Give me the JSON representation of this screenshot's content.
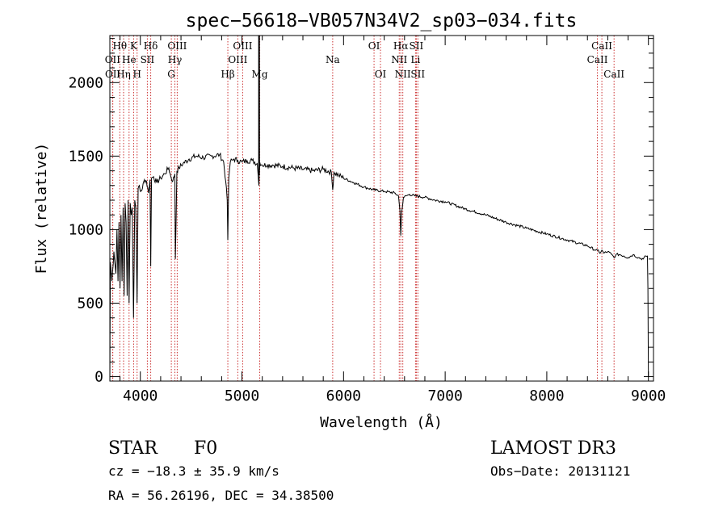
{
  "chart_data": {
    "type": "line",
    "title": "spec−56618−VB057N34V2_sp03−034.fits",
    "xlabel": "Wavelength (Å)",
    "ylabel": "Flux (relative)",
    "xlim": [
      3700,
      9050
    ],
    "ylim": [
      -30,
      2320
    ],
    "x_ticks": [
      4000,
      5000,
      6000,
      7000,
      8000,
      9000
    ],
    "y_ticks": [
      0,
      500,
      1000,
      1500,
      2000
    ],
    "grid": false,
    "series": [
      {
        "name": "flux",
        "x": [
          3700,
          3705,
          3720,
          3740,
          3760,
          3770,
          3780,
          3790,
          3800,
          3810,
          3820,
          3830,
          3840,
          3850,
          3860,
          3870,
          3880,
          3889,
          3900,
          3910,
          3920,
          3933,
          3945,
          3955,
          3968,
          3978,
          3990,
          4000,
          4020,
          4040,
          4060,
          4080,
          4095,
          4102,
          4110,
          4130,
          4160,
          4200,
          4240,
          4280,
          4300,
          4320,
          4340,
          4345,
          4360,
          4380,
          4420,
          4480,
          4550,
          4620,
          4700,
          4780,
          4820,
          4840,
          4855,
          4861,
          4870,
          4885,
          4920,
          4960,
          5000,
          5050,
          5100,
          5150,
          5167,
          5175,
          5200,
          5250,
          5300,
          5400,
          5500,
          5600,
          5700,
          5800,
          5880,
          5893,
          5905,
          5950,
          6000,
          6100,
          6200,
          6300,
          6400,
          6500,
          6540,
          6555,
          6563,
          6572,
          6590,
          6650,
          6700,
          6800,
          6900,
          7000,
          7200,
          7400,
          7600,
          7800,
          8000,
          8200,
          8400,
          8480,
          8498,
          8520,
          8542,
          8560,
          8600,
          8640,
          8662,
          8680,
          8720,
          8760,
          8800,
          8850,
          8900,
          8950,
          8975,
          8990,
          8995,
          9000
        ],
        "values": [
          0,
          780,
          650,
          850,
          700,
          1000,
          650,
          1050,
          600,
          1100,
          650,
          1150,
          550,
          1180,
          1050,
          550,
          1200,
          500,
          1180,
          1100,
          1150,
          400,
          1200,
          1150,
          500,
          1280,
          1300,
          1260,
          1280,
          1340,
          1330,
          1250,
          1340,
          750,
          1350,
          1360,
          1320,
          1350,
          1380,
          1420,
          1360,
          1330,
          1380,
          800,
          1400,
          1420,
          1450,
          1480,
          1500,
          1490,
          1500,
          1510,
          1460,
          1330,
          1200,
          930,
          1350,
          1460,
          1480,
          1470,
          1460,
          1470,
          1470,
          1450,
          1300,
          1460,
          1440,
          1440,
          1440,
          1430,
          1420,
          1410,
          1400,
          1410,
          1390,
          1270,
          1390,
          1370,
          1350,
          1320,
          1290,
          1270,
          1260,
          1250,
          1230,
          1130,
          960,
          1120,
          1220,
          1240,
          1230,
          1220,
          1200,
          1190,
          1140,
          1100,
          1050,
          1010,
          970,
          930,
          890,
          860,
          860,
          840,
          860,
          840,
          850,
          830,
          810,
          830,
          830,
          820,
          810,
          830,
          810,
          800,
          820,
          820,
          600,
          0
        ]
      },
      {
        "name": "Mg emission spike",
        "x": [
          5168,
          5168,
          5169
        ],
        "values": [
          1370,
          2320,
          1420
        ]
      }
    ],
    "line_markers": [
      {
        "label": "Hθ",
        "wavelength": 3798,
        "row": 1
      },
      {
        "label": "OII",
        "wavelength": 3727,
        "row": 2
      },
      {
        "label": "OII",
        "wavelength": 3729,
        "row": 3
      },
      {
        "label": "Hη",
        "wavelength": 3835,
        "row": 3
      },
      {
        "label": "He",
        "wavelength": 3889,
        "row": 2
      },
      {
        "label": "K",
        "wavelength": 3934,
        "row": 1
      },
      {
        "label": "SII",
        "wavelength": 4069,
        "row": 2
      },
      {
        "label": "H",
        "wavelength": 3968,
        "row": 3
      },
      {
        "label": "Hδ",
        "wavelength": 4102,
        "row": 1
      },
      {
        "label": "OIII",
        "wavelength": 4363,
        "row": 1
      },
      {
        "label": "Hγ",
        "wavelength": 4340,
        "row": 2
      },
      {
        "label": "G",
        "wavelength": 4305,
        "row": 3
      },
      {
        "label": "OIII",
        "wavelength": 5007,
        "row": 1
      },
      {
        "label": "OIII",
        "wavelength": 4959,
        "row": 2
      },
      {
        "label": "Hβ",
        "wavelength": 4861,
        "row": 3
      },
      {
        "label": "Mg",
        "wavelength": 5175,
        "row": 3
      },
      {
        "label": "Na",
        "wavelength": 5893,
        "row": 2
      },
      {
        "label": "OI",
        "wavelength": 6300,
        "row": 1
      },
      {
        "label": "OI",
        "wavelength": 6363,
        "row": 3
      },
      {
        "label": "Hα",
        "wavelength": 6563,
        "row": 1
      },
      {
        "label": "NII",
        "wavelength": 6548,
        "row": 2
      },
      {
        "label": "NII",
        "wavelength": 6583,
        "row": 3
      },
      {
        "label": "SII",
        "wavelength": 6716,
        "row": 1
      },
      {
        "label": "Li",
        "wavelength": 6708,
        "row": 2
      },
      {
        "label": "SII",
        "wavelength": 6731,
        "row": 3
      },
      {
        "label": "CaII",
        "wavelength": 8542,
        "row": 1
      },
      {
        "label": "CaII",
        "wavelength": 8498,
        "row": 2
      },
      {
        "label": "CaII",
        "wavelength": 8662,
        "row": 3
      }
    ]
  },
  "info": {
    "object_class": "STAR",
    "subclass": "F0",
    "survey": "LAMOST DR3",
    "redshift_text": "cz = −18.3 ± 35.9 km/s",
    "obs_date_text": "Obs−Date: 20131121",
    "coords_text": "RA =  56.26196, DEC =  34.38500"
  },
  "colors": {
    "axes": "#000000",
    "spectrum": "#000000",
    "line_marker": "#cc3333"
  }
}
